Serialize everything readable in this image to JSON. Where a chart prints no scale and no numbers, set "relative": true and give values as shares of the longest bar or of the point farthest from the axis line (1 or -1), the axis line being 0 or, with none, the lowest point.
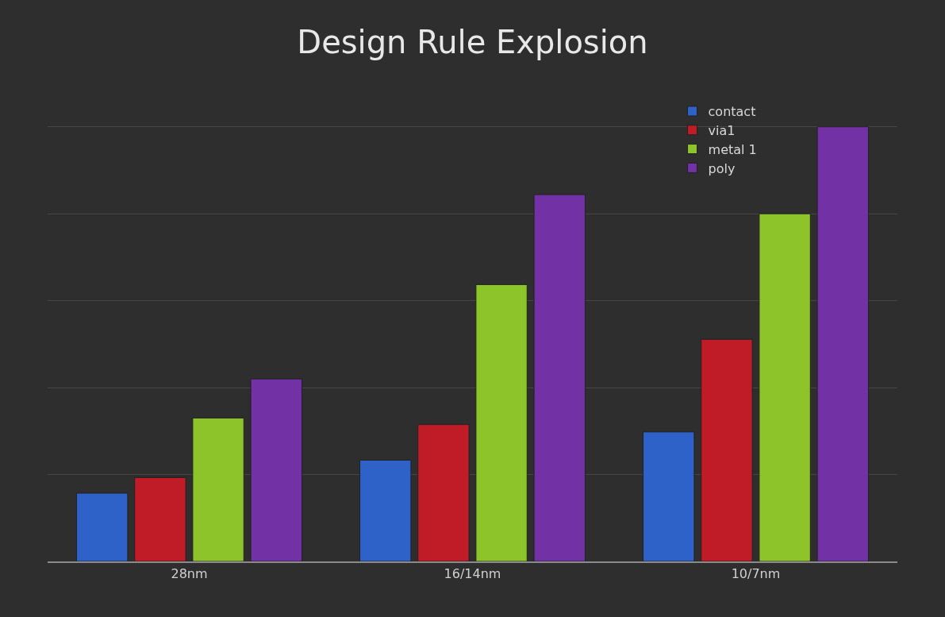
{
  "chart_data": {
    "type": "bar",
    "title": "Design Rule Explosion",
    "relative": true,
    "categories": [
      "28nm",
      "16/14nm",
      "10/7nm"
    ],
    "series": [
      {
        "name": "contact",
        "color": "#2f62c8",
        "values": [
          0.157,
          0.233,
          0.298
        ]
      },
      {
        "name": "via1",
        "color": "#c01c28",
        "values": [
          0.193,
          0.315,
          0.511
        ]
      },
      {
        "name": "metal 1",
        "color": "#8cc42a",
        "values": [
          0.33,
          0.637,
          0.8
        ]
      },
      {
        "name": "poly",
        "color": "#7232a6",
        "values": [
          0.42,
          0.844,
          1
        ]
      }
    ],
    "grid": "y",
    "legend": "top right"
  }
}
